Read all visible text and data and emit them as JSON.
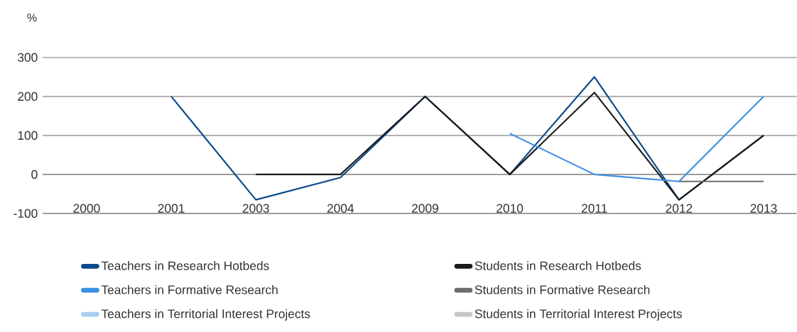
{
  "chart_data": {
    "type": "line",
    "ylabel": "%",
    "categories": [
      "2000",
      "2001",
      "2003",
      "2004",
      "2009",
      "2010",
      "2011",
      "2012",
      "2013"
    ],
    "series": [
      {
        "name": "Teachers in Research Hotbeds",
        "color": "#0b4a8b",
        "values": [
          null,
          200,
          -65,
          -8,
          200,
          0,
          250,
          -65,
          100
        ]
      },
      {
        "name": "Students in Research Hotbeds",
        "color": "#1a1a1a",
        "values": [
          null,
          null,
          0,
          0,
          200,
          0,
          210,
          -65,
          100
        ]
      },
      {
        "name": "Teachers in Formative Research",
        "color": "#3d8fe0",
        "values": [
          null,
          null,
          null,
          null,
          null,
          105,
          0,
          -18,
          200
        ]
      },
      {
        "name": "Students in Formative Research",
        "color": "#6e6e6e",
        "values": [
          null,
          null,
          null,
          null,
          null,
          null,
          null,
          -18,
          -18
        ]
      },
      {
        "name": "Teachers in Territorial Interest Projects",
        "color": "#a9cdf0",
        "values": [
          null,
          null,
          null,
          null,
          null,
          null,
          null,
          null,
          null
        ]
      },
      {
        "name": "Students in Territorial Interest Projects",
        "color": "#c6c6c6",
        "values": [
          null,
          null,
          null,
          null,
          null,
          null,
          null,
          null,
          null
        ]
      }
    ],
    "ylim": [
      -100,
      300
    ],
    "yticks": [
      -100,
      0,
      100,
      200,
      300
    ],
    "grid": "y",
    "legend": "bottom"
  }
}
